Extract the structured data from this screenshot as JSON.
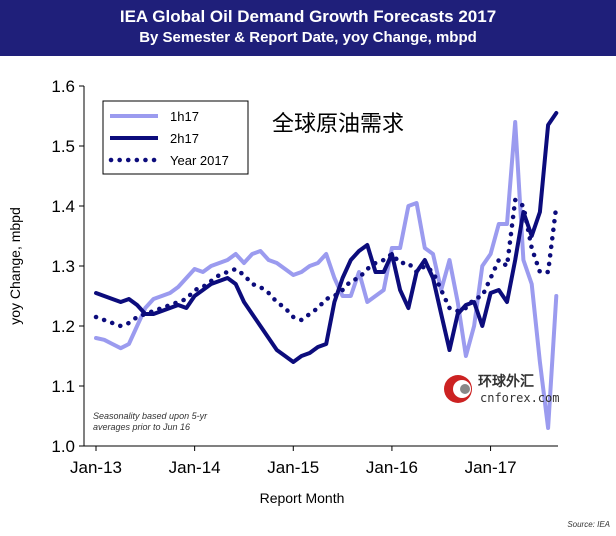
{
  "header": {
    "title": "IEA Global Oil Demand Growth Forecasts 2017",
    "subtitle": "By Semester & Report Date, yoy Change, mbpd"
  },
  "annotation_cn": "全球原油需求",
  "note_line1": "Seasonality based upon 5-yr",
  "note_line2": "averages prior to Jun 16",
  "source": "Source: IEA",
  "watermark": {
    "cn": "环球外汇",
    "en": "cnforex.com"
  },
  "colors": {
    "header_bg": "#1f1f7a",
    "h1": "#9b9bef",
    "h2": "#0c0c7c",
    "year": "#0c0c7c"
  },
  "chart_data": {
    "type": "line",
    "title": "IEA Global Oil Demand Growth Forecasts 2017",
    "subtitle": "By Semester & Report Date, yoy Change, mbpd",
    "xlabel": "Report Month",
    "ylabel": "yoy Change, mbpd",
    "ylim": [
      1.0,
      1.6
    ],
    "yticks": [
      "1.0",
      "1.1",
      "1.2",
      "1.3",
      "1.4",
      "1.5",
      "1.6"
    ],
    "xticks": [
      "Jan-13",
      "Jan-14",
      "Jan-15",
      "Jan-16",
      "Jan-17"
    ],
    "x_start": "Jan-13",
    "legend_position": "top-left",
    "grid": false,
    "series": [
      {
        "name": "1h17",
        "style": "solid-thick",
        "color": "#9b9bef",
        "values": [
          1.18,
          1.177,
          1.17,
          1.163,
          1.17,
          1.2,
          1.23,
          1.245,
          1.25,
          1.255,
          1.265,
          1.28,
          1.295,
          1.29,
          1.3,
          1.305,
          1.31,
          1.32,
          1.305,
          1.32,
          1.325,
          1.31,
          1.305,
          1.295,
          1.285,
          1.29,
          1.3,
          1.305,
          1.32,
          1.28,
          1.25,
          1.25,
          1.29,
          1.24,
          1.25,
          1.26,
          1.33,
          1.33,
          1.4,
          1.405,
          1.33,
          1.32,
          1.26,
          1.31,
          1.24,
          1.15,
          1.2,
          1.3,
          1.32,
          1.37,
          1.37,
          1.54,
          1.31,
          1.27,
          1.14,
          1.03,
          1.25
        ]
      },
      {
        "name": "2h17",
        "style": "solid-thick",
        "color": "#0c0c7c",
        "values": [
          1.255,
          1.25,
          1.245,
          1.24,
          1.245,
          1.235,
          1.22,
          1.22,
          1.225,
          1.23,
          1.235,
          1.23,
          1.25,
          1.26,
          1.27,
          1.275,
          1.28,
          1.27,
          1.24,
          1.22,
          1.2,
          1.18,
          1.16,
          1.15,
          1.14,
          1.15,
          1.155,
          1.165,
          1.17,
          1.24,
          1.28,
          1.31,
          1.325,
          1.335,
          1.29,
          1.29,
          1.32,
          1.26,
          1.23,
          1.29,
          1.31,
          1.28,
          1.22,
          1.16,
          1.22,
          1.235,
          1.24,
          1.2,
          1.255,
          1.26,
          1.24,
          1.31,
          1.39,
          1.35,
          1.39,
          1.535,
          1.555
        ]
      },
      {
        "name": "Year 2017",
        "style": "dotted-thick",
        "color": "#0c0c7c",
        "values": [
          1.215,
          1.21,
          1.205,
          1.2,
          1.205,
          1.215,
          1.22,
          1.225,
          1.23,
          1.235,
          1.24,
          1.245,
          1.26,
          1.265,
          1.275,
          1.285,
          1.29,
          1.295,
          1.285,
          1.27,
          1.265,
          1.255,
          1.24,
          1.23,
          1.215,
          1.21,
          1.22,
          1.23,
          1.245,
          1.25,
          1.26,
          1.275,
          1.28,
          1.295,
          1.305,
          1.31,
          1.32,
          1.305,
          1.305,
          1.29,
          1.3,
          1.29,
          1.26,
          1.23,
          1.225,
          1.23,
          1.245,
          1.25,
          1.28,
          1.31,
          1.3,
          1.41,
          1.4,
          1.33,
          1.29,
          1.29,
          1.4
        ]
      }
    ]
  }
}
